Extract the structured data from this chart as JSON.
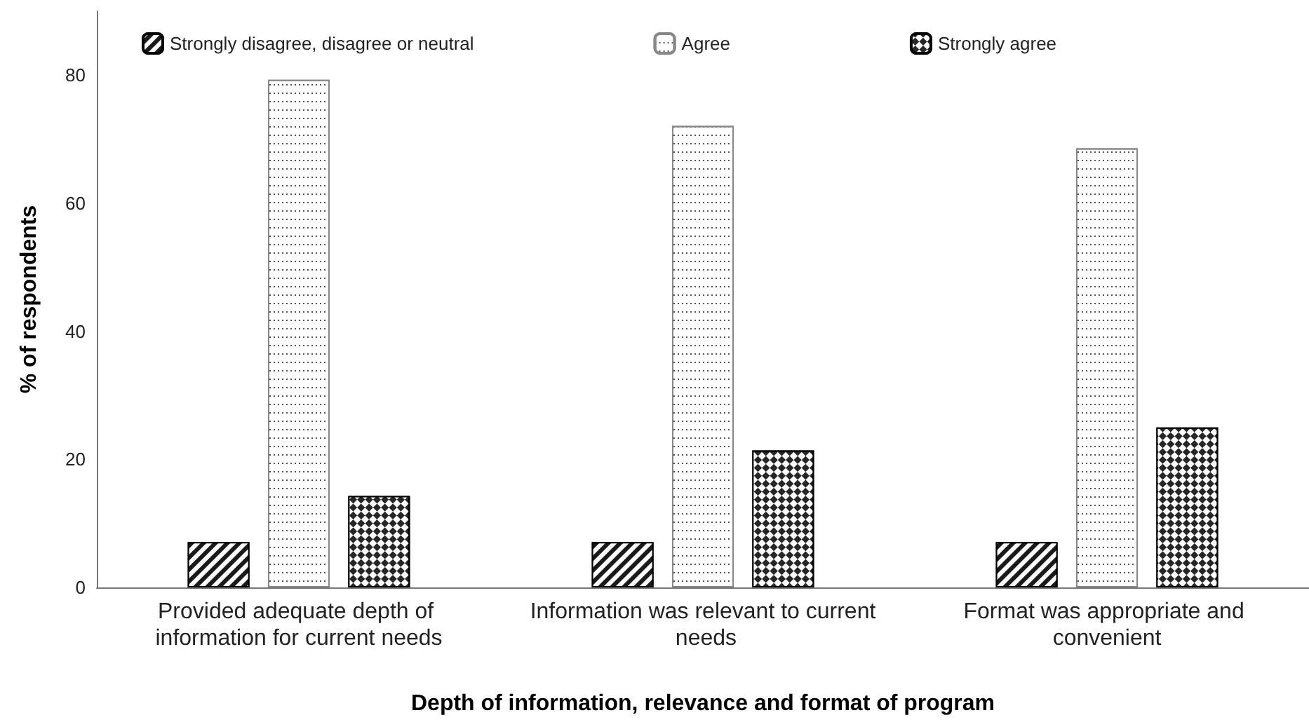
{
  "chart_data": {
    "type": "bar",
    "xlabel": "Depth of information, relevance and format of program",
    "ylabel": "% of respondents",
    "categories": [
      "Provided adequate depth of information for current needs",
      "Information was relevant to current needs",
      "Format was appropriate and convenient"
    ],
    "series": [
      {
        "name": "Strongly disagree, disagree or neutral",
        "color": "#1a1a1a",
        "values": [
          7.1,
          7.1,
          7.1
        ]
      },
      {
        "name": "Agree",
        "color": "#ffffff",
        "values": [
          79.3,
          72.1,
          68.6
        ]
      },
      {
        "name": "Strongly agree",
        "color": "#262626",
        "values": [
          14.3,
          21.4,
          25.0
        ]
      }
    ],
    "ylim": [
      0,
      90
    ],
    "yticks": [
      0,
      20,
      40,
      60,
      80
    ],
    "grid": false,
    "legend": "top"
  }
}
